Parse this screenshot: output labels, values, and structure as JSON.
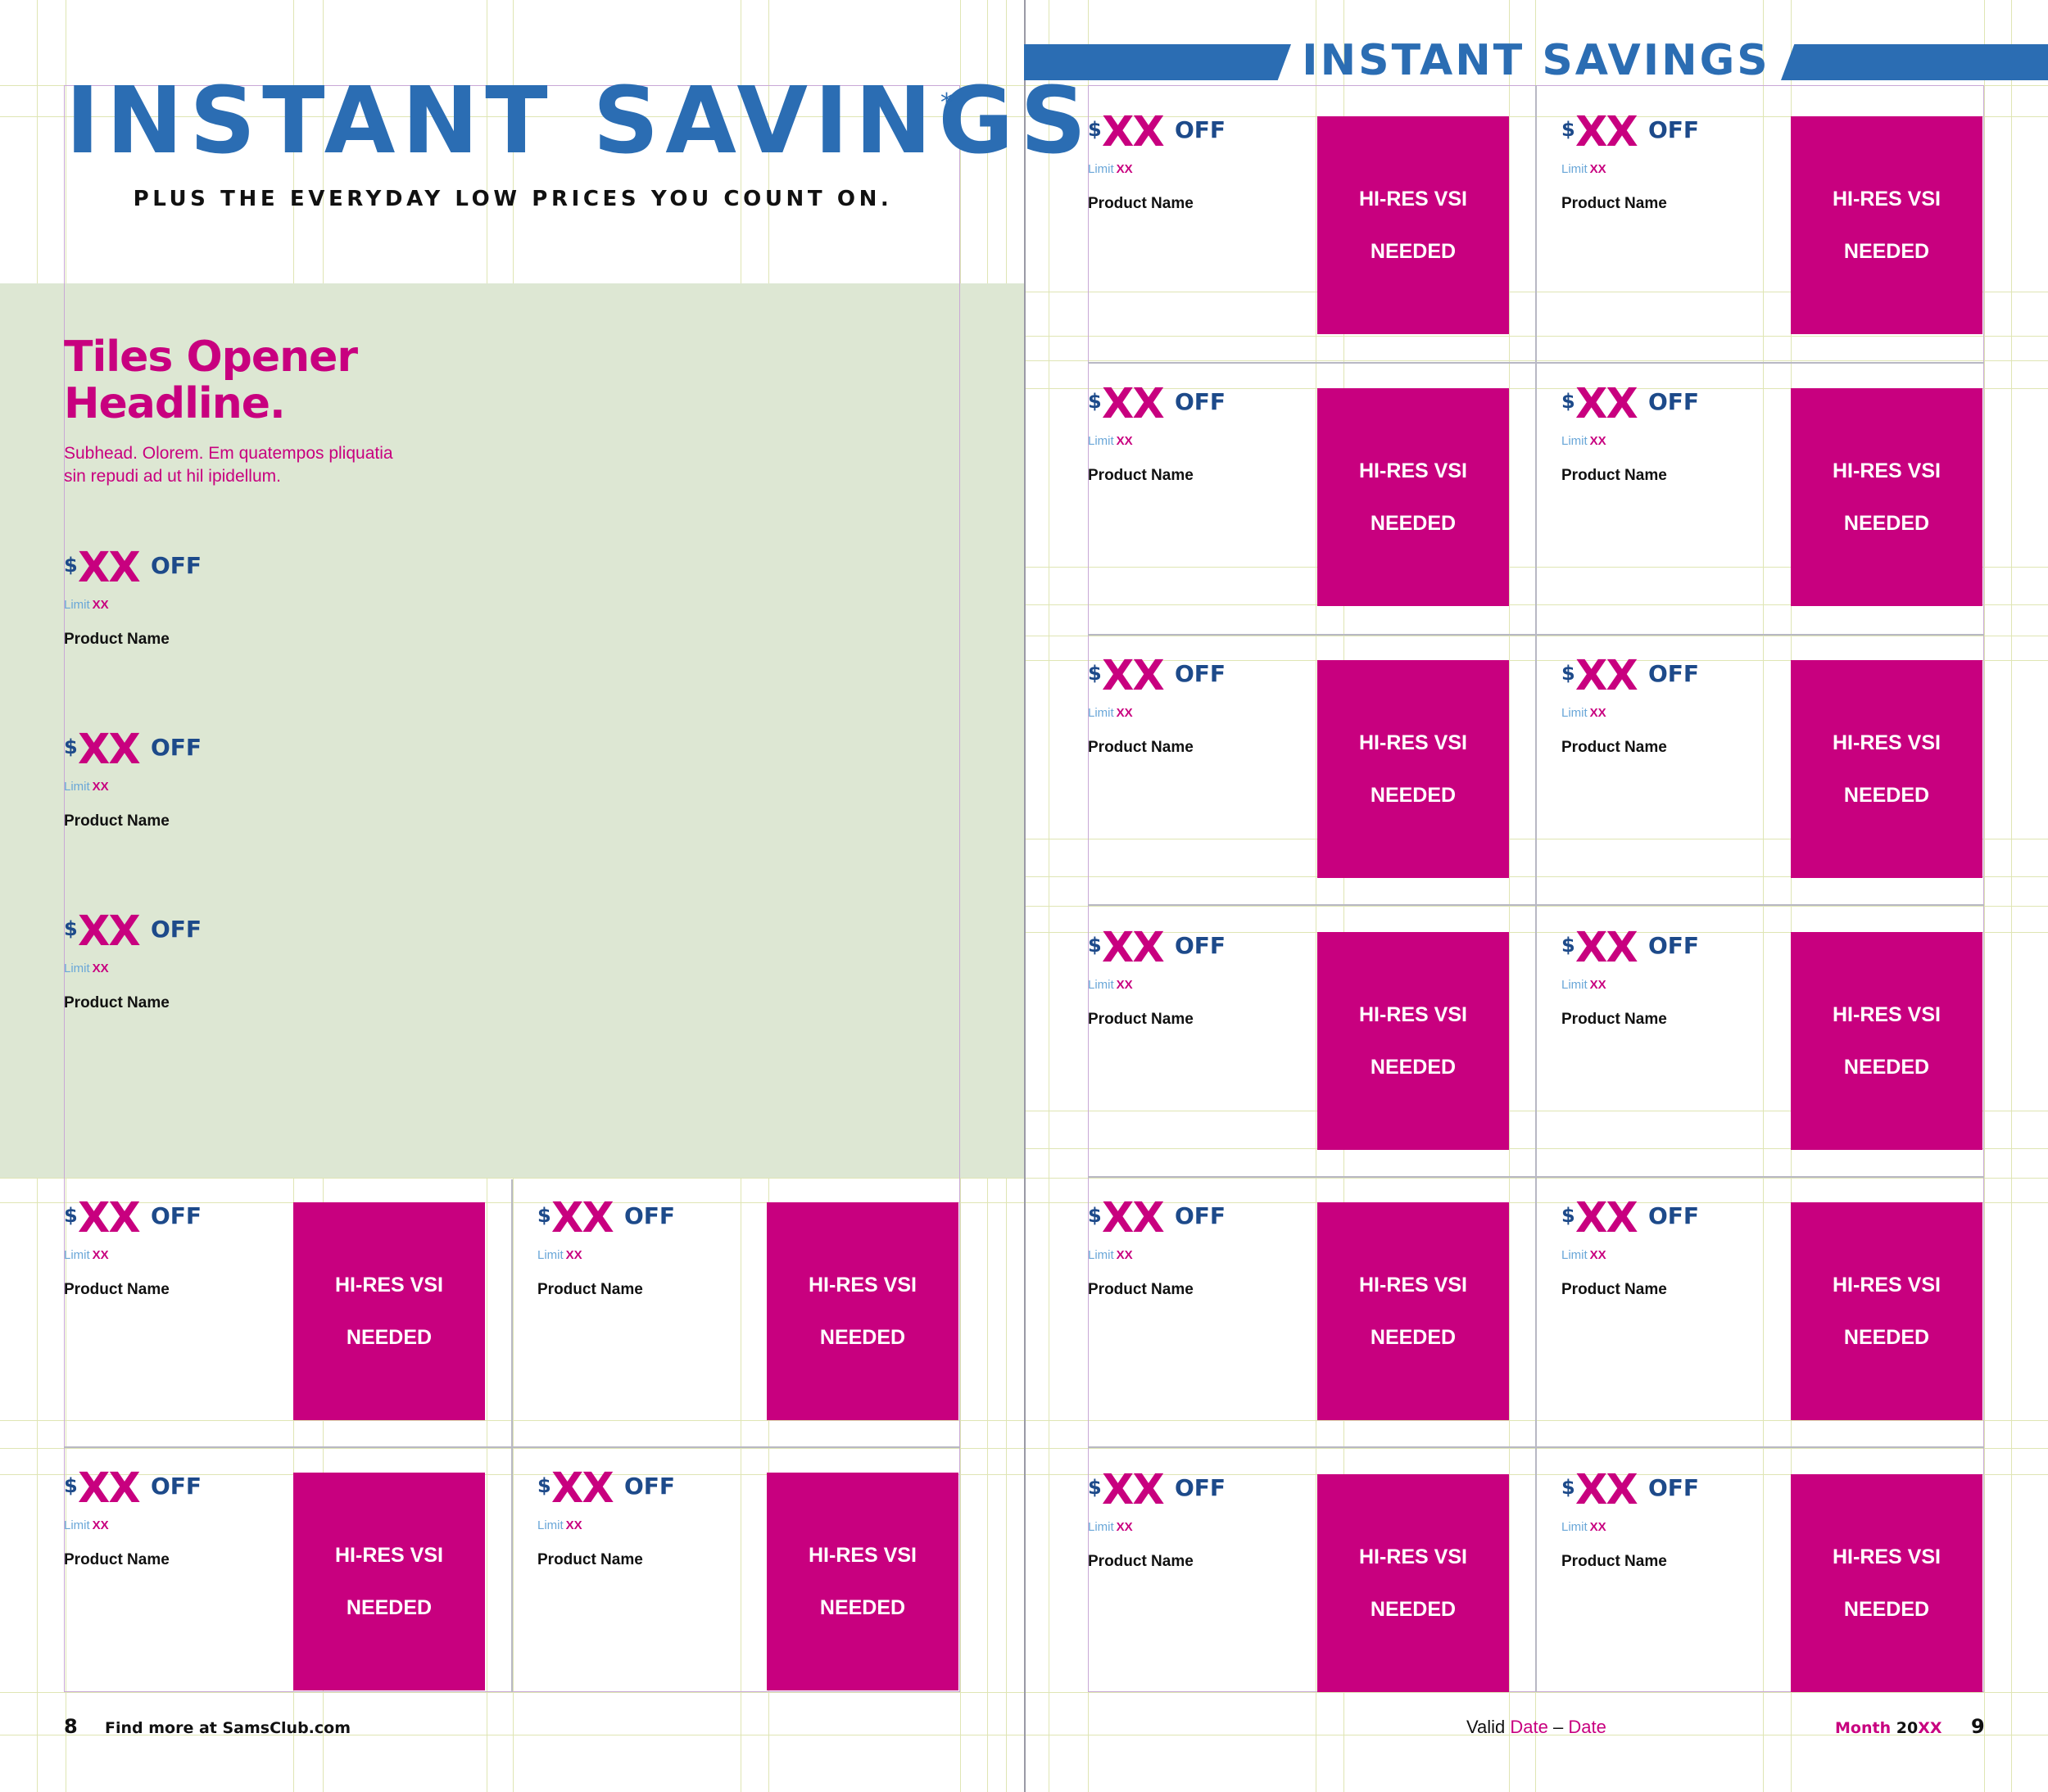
{
  "left_page": {
    "title": "INSTANT SAVINGS",
    "asterisk": "*",
    "tagline": "PLUS THE EVERYDAY LOW PRICES YOU COUNT ON.",
    "opener_headline_line1": "Tiles Opener",
    "opener_headline_line2": "Headline.",
    "opener_subhead": "Subhead. Olorem. Em quatempos pliquatia sin repudi ad ut hil ipidellum.",
    "page_number": "8",
    "footer_text": "Find more at SamsClub.com"
  },
  "right_page": {
    "banner_title": "INSTANT SAVINGS",
    "page_number": "9",
    "valid_label": "Valid",
    "valid_start": "Date",
    "valid_separator": "–",
    "valid_end": "Date",
    "month_label": "Month",
    "year_prefix": "20",
    "year_suffix": "XX"
  },
  "offer": {
    "currency": "$",
    "amount": "XX",
    "off_label": "OFF",
    "limit_label": "Limit",
    "limit_value": "XX",
    "product_name": "Product Name",
    "image_placeholder_line1": "HI-RES VSI",
    "image_placeholder_line2": "NEEDED"
  },
  "colors": {
    "brand_blue": "#2b6db3",
    "navy": "#1d4a8a",
    "magenta": "#c8007f",
    "panel_green": "#dde7d3",
    "limit_blue": "#6aa7d8"
  }
}
